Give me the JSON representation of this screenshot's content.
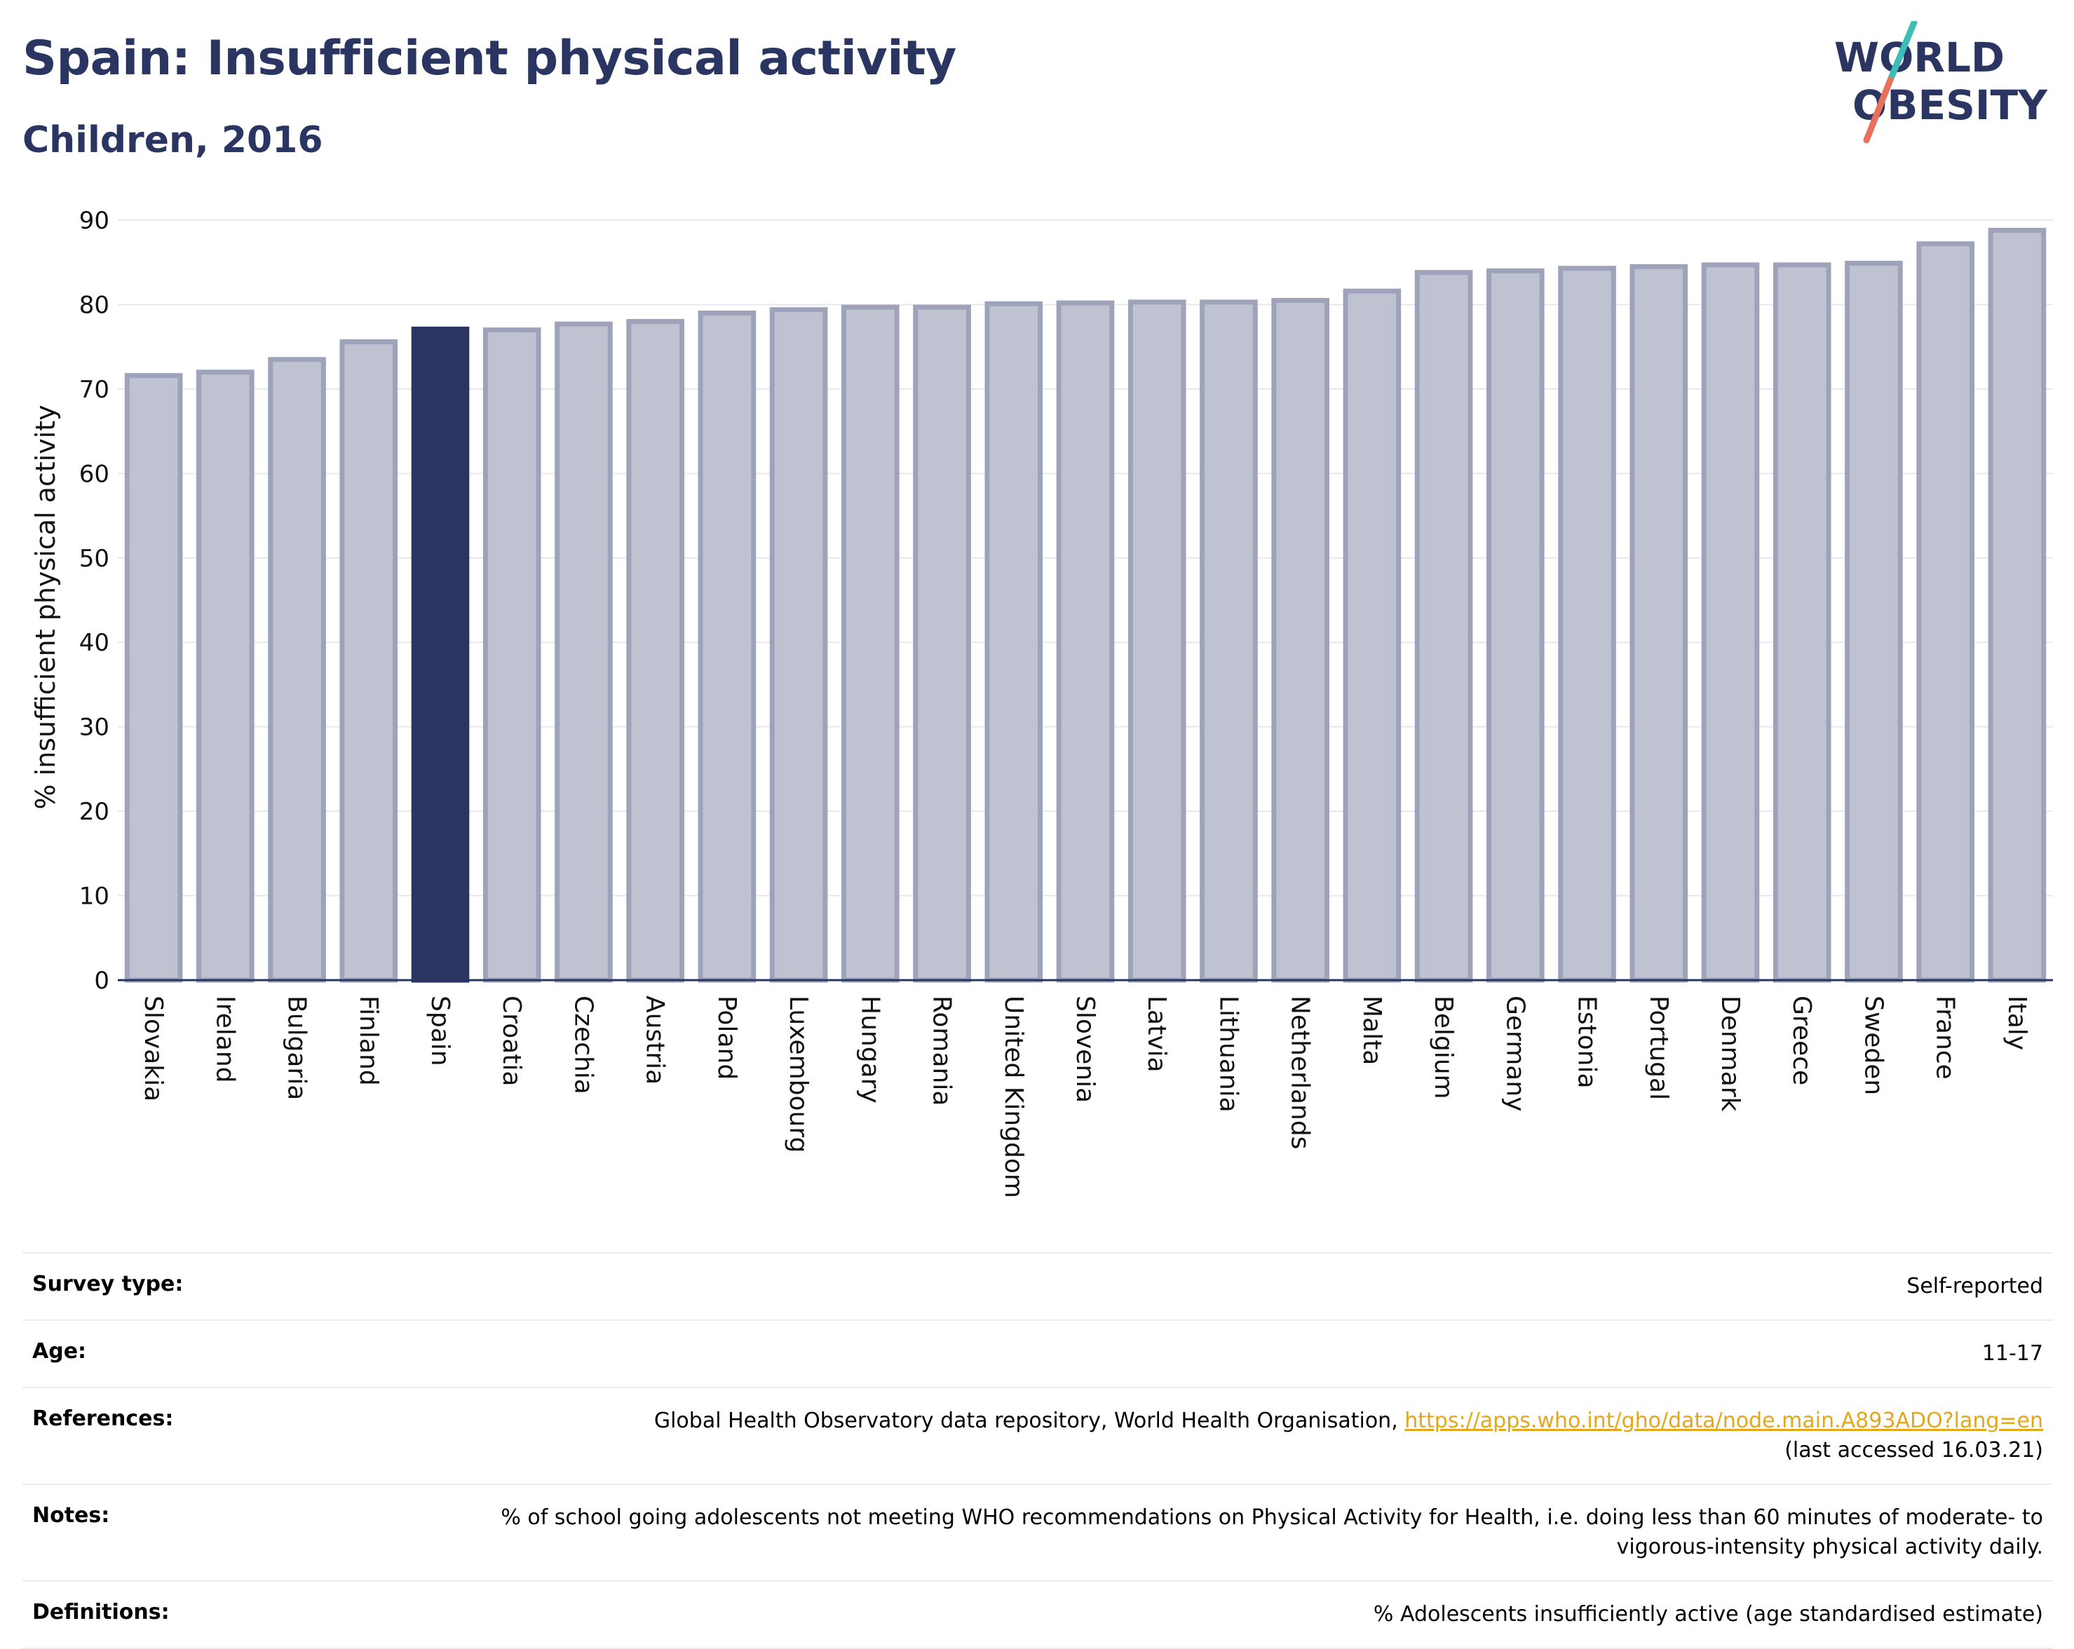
{
  "header": {
    "title": "Spain: Insufficient physical activity",
    "subtitle": "Children, 2016"
  },
  "logo": {
    "line1": "WORLD",
    "line2": "OBESITY",
    "colors": {
      "text": "#2a3561",
      "slash_teal": "#3dbdb6",
      "slash_coral": "#e8705d"
    }
  },
  "colors": {
    "highlight_bar": "#2a3561",
    "other_bar_fill": "#bfc2d1",
    "other_bar_stroke": "#9ea3ba",
    "grid": "#e6e8ef",
    "axis": "#2a3561"
  },
  "chart_data": {
    "type": "bar",
    "ylabel": "% insufficient physical activity",
    "ylim": [
      0,
      90
    ],
    "yticks": [
      0,
      10,
      20,
      30,
      40,
      50,
      60,
      70,
      80,
      90
    ],
    "grid": true,
    "highlight": "Spain",
    "categories": [
      "Slovakia",
      "Ireland",
      "Bulgaria",
      "Finland",
      "Spain",
      "Croatia",
      "Czechia",
      "Austria",
      "Poland",
      "Luxembourg",
      "Hungary",
      "Romania",
      "United Kingdom",
      "Slovenia",
      "Latvia",
      "Lithuania",
      "Netherlands",
      "Malta",
      "Belgium",
      "Germany",
      "Estonia",
      "Portugal",
      "Denmark",
      "Greece",
      "Sweden",
      "France",
      "Italy"
    ],
    "values": [
      71.6,
      72.0,
      73.5,
      75.6,
      77.1,
      77.0,
      77.7,
      78.0,
      79.0,
      79.4,
      79.7,
      79.7,
      80.1,
      80.2,
      80.3,
      80.3,
      80.5,
      81.6,
      83.8,
      84.0,
      84.3,
      84.5,
      84.7,
      84.7,
      84.9,
      87.2,
      88.8
    ]
  },
  "details": [
    {
      "label": "Survey type:",
      "value": "Self-reported"
    },
    {
      "label": "Age:",
      "value": "11-17"
    },
    {
      "label": "References:",
      "value": "Global Health Observatory data repository, World Health Organisation, ",
      "link": "https://apps.who.int/gho/data/node.main.A893ADO?lang=en",
      "value2": "(last accessed 16.03.21)"
    },
    {
      "label": "Notes:",
      "value": "% of school going adolescents not meeting WHO recommendations on Physical Activity for Health, i.e. doing less than 60 minutes of moderate- to vigorous-intensity physical activity daily."
    },
    {
      "label": "Definitions:",
      "value": "% Adolescents insufficiently active (age standardised estimate)"
    }
  ]
}
